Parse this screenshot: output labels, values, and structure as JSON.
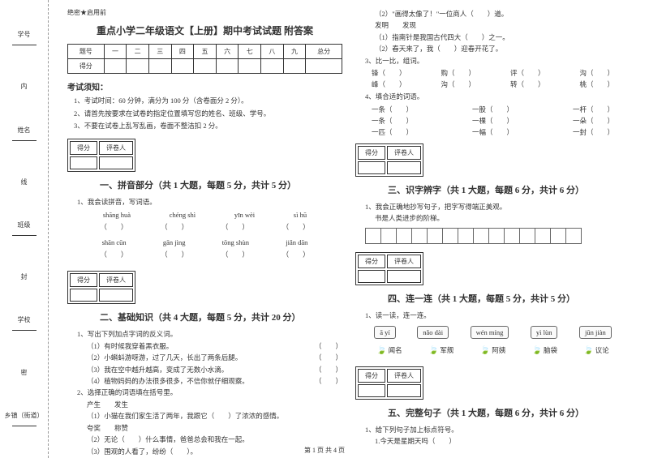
{
  "side": {
    "labels": [
      "学号",
      "姓名",
      "班级",
      "学校",
      "乡镇（街道）"
    ],
    "markers": [
      "内",
      "线",
      "封",
      "密"
    ]
  },
  "header_mark": "绝密★启用前",
  "title": "重点小学二年级语文【上册】期中考试试题 附答案",
  "score_table": {
    "headers": [
      "题号",
      "一",
      "二",
      "三",
      "四",
      "五",
      "六",
      "七",
      "八",
      "九",
      "总分"
    ],
    "row_label": "得分"
  },
  "notice_title": "考试须知：",
  "notices": [
    "1、考试时间：60 分钟，满分为 100 分（含卷面分 2 分）。",
    "2、请首先按要求在试卷的指定位置填写您的姓名、班级、学号。",
    "3、不要在试卷上乱写乱画，卷面不整洁扣 2 分。"
  ],
  "scorebox": {
    "c1": "得分",
    "c2": "评卷人"
  },
  "sec1": {
    "title": "一、拼音部分（共 1 大题，每题 5 分，共计 5 分）",
    "q": "1、我会读拼音，写词语。",
    "row1": [
      "shāng huà",
      "chéng shì",
      "yīn wèi",
      "sì hū"
    ],
    "row2": [
      "shān cūn",
      "gān jìng",
      "tōng shùn",
      "jiǎn dān"
    ],
    "paren": "（　　）"
  },
  "sec2": {
    "title": "二、基础知识（共 4 大题，每题 5 分，共计 20 分）",
    "q1": "1、写出下列加点字词的反义词。",
    "lines1": [
      "（1）有时候我穿着黑衣服。",
      "（2）小蝌蚪游呀游，过了几天，长出了两条后腿。",
      "（3）我在空中越升越高，变成了无数小水滴。",
      "（4）植物妈妈的办法很多很多，不信你就仔细观察。"
    ],
    "q2": "2、选择正确的词语填在括号里。",
    "opt1": "产生　　发生",
    "line2_1": "（1）小猫在我们家生活了两年，我跟它（　　）了浓浓的感情。",
    "opt2": "夸奖　　称赞",
    "line2_2": "（2）无论（　　）什么事情，爸爸总会和我在一起。",
    "line2_3": "（3）围观的人看了，纷纷（　　）。"
  },
  "right": {
    "l1": "（2）\"画得太像了！\"一位商人（　　）道。",
    "opt3": "发明　　发现",
    "l2": "（1）指南针是我国古代四大（　　）之一。",
    "l3": "（2）春天来了，我（　　）迎春开花了。",
    "q3": "3、比一比，组词。",
    "row3a": [
      "锋（　　）",
      "购（　　）",
      "评（　　）",
      "沟（　　）"
    ],
    "row3b": [
      "峰（　　）",
      "沟（　　）",
      "转（　　）",
      "桃（　　）"
    ],
    "q4": "4、填合适的词语。",
    "row4a": [
      "一条（　　）",
      "一股（　　）",
      "一杆（　　）"
    ],
    "row4b": [
      "一条（　　）",
      "一棵（　　）",
      "一朵（　　）"
    ],
    "row4c": [
      "一匹（　　）",
      "一幅（　　）",
      "一封（　　）"
    ]
  },
  "sec3": {
    "title": "三、识字辨字（共 1 大题，每题 6 分，共计 6 分）",
    "q": "1、我会正确地抄写句子，把字写得端正美观。",
    "text": "书是人类进步的阶梯。"
  },
  "sec4": {
    "title": "四、连一连（共 1 大题，每题 5 分，共计 5 分）",
    "q": "1、读一读，连一连。",
    "top": [
      "ā yí",
      "nǎo dài",
      "wén míng",
      "yì lùn",
      "jūn jiàn"
    ],
    "bottom": [
      "闻名",
      "军舰",
      "阿姨",
      "脑袋",
      "议论"
    ]
  },
  "sec5": {
    "title": "五、完整句子（共 1 大题，每题 6 分，共计 6 分）",
    "q": "1、给下列句子加上标点符号。",
    "l": "1.今天是星期天吗（　　）"
  },
  "paren_right": "（　　）",
  "footer": "第 1 页 共 4 页"
}
